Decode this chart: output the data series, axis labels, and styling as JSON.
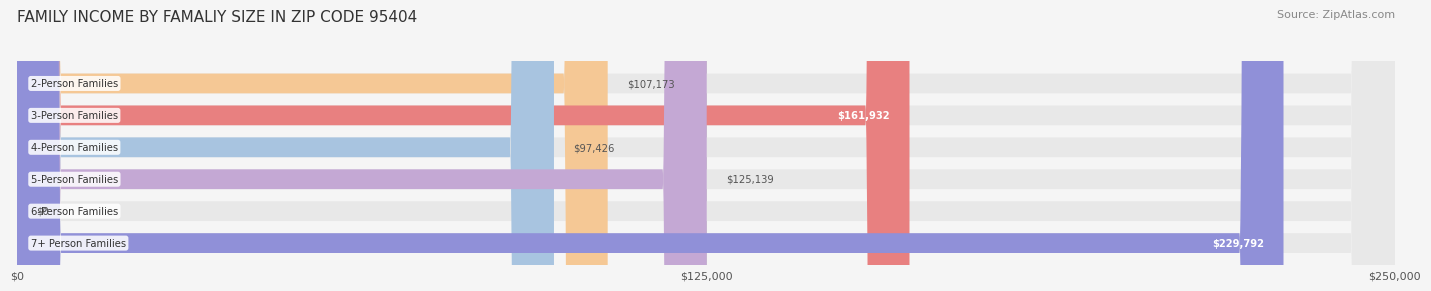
{
  "title": "FAMILY INCOME BY FAMALIY SIZE IN ZIP CODE 95404",
  "source": "Source: ZipAtlas.com",
  "categories": [
    "2-Person Families",
    "3-Person Families",
    "4-Person Families",
    "5-Person Families",
    "6-Person Families",
    "7+ Person Families"
  ],
  "values": [
    107173,
    161932,
    97426,
    125139,
    0,
    229792
  ],
  "bar_colors": [
    "#f5c895",
    "#e88080",
    "#a8c4e0",
    "#c4a8d4",
    "#6ecdc8",
    "#9090d8"
  ],
  "label_colors": [
    "#555555",
    "#ffffff",
    "#555555",
    "#555555",
    "#555555",
    "#ffffff"
  ],
  "xmax": 250000,
  "xtick_labels": [
    "$0",
    "$125,000",
    "$250,000"
  ],
  "background_color": "#f5f5f5",
  "bar_bg_color": "#e8e8e8",
  "title_fontsize": 11,
  "source_fontsize": 8
}
